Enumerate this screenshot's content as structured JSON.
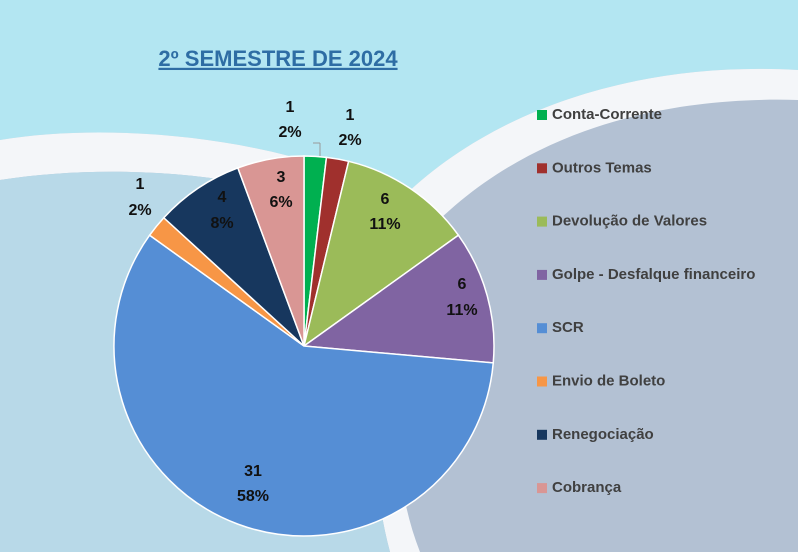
{
  "chart_data": {
    "type": "pie",
    "title": "2º SEMESTRE DE 2024",
    "categories": [
      "Conta-Corrente",
      "Outros Temas",
      "Devolução de Valores",
      "Golpe - Desfalque financeiro",
      "SCR",
      "Envio de Boleto",
      "Renegociação",
      "Cobrança"
    ],
    "values": [
      1,
      1,
      6,
      6,
      31,
      1,
      4,
      3
    ],
    "percent_labels": [
      "2%",
      "2%",
      "11%",
      "11%",
      "58%",
      "2%",
      "8%",
      "6%"
    ],
    "colors": [
      "#00b050",
      "#a0302d",
      "#9bbb59",
      "#8064a2",
      "#558ed5",
      "#f79646",
      "#17375e",
      "#d99694"
    ],
    "legend": "right"
  }
}
